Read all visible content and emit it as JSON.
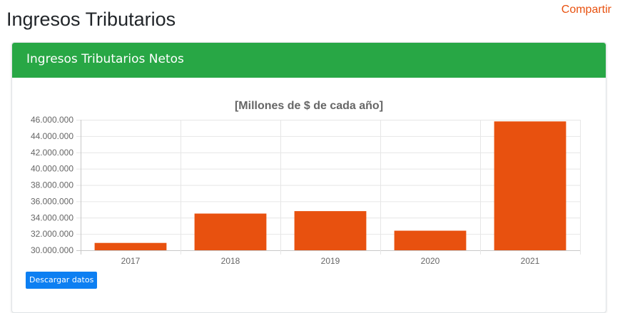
{
  "page": {
    "title": "Ingresos Tributarios",
    "share_label": "Compartir"
  },
  "card": {
    "title": "Ingresos Tributarios Netos"
  },
  "download": {
    "label": "Descargar datos"
  },
  "colors": {
    "bar": "#e8510f",
    "header": "#28a745",
    "accent": "#e8510f",
    "button": "#0d7ff2"
  },
  "chart_data": {
    "type": "bar",
    "title": "[Millones de $ de cada año]",
    "categories": [
      "2017",
      "2018",
      "2019",
      "2020",
      "2021"
    ],
    "values": [
      30900000,
      34500000,
      34800000,
      32400000,
      45800000
    ],
    "ylim": [
      30000000,
      46000000
    ],
    "yticks": [
      30000000,
      32000000,
      34000000,
      36000000,
      38000000,
      40000000,
      42000000,
      44000000,
      46000000
    ],
    "ytick_labels": [
      "30.000.000",
      "32.000.000",
      "34.000.000",
      "36.000.000",
      "38.000.000",
      "40.000.000",
      "42.000.000",
      "44.000.000",
      "46.000.000"
    ],
    "grid": true,
    "legend": "none"
  }
}
